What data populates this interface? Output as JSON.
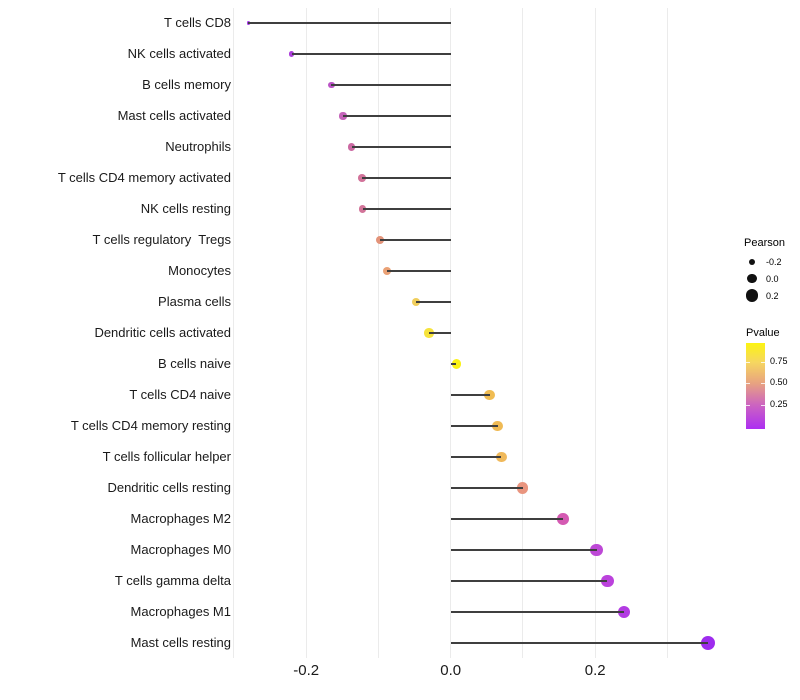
{
  "colors": {
    "background": "#ffffff",
    "gridline": "#ebebeb",
    "segment": "#3f3f3f",
    "axis_text": "#1a1a1a"
  },
  "chart_data": {
    "type": "lollipop",
    "orientation": "horizontal",
    "title": "",
    "xlabel": "",
    "ylabel": "",
    "baseline": 0.0,
    "x_axis": {
      "domain": [
        -0.32,
        0.39
      ],
      "tick_labels": [
        {
          "value": -0.2,
          "label": "-0.2"
        },
        {
          "value": 0.0,
          "label": "0.0"
        },
        {
          "value": 0.2,
          "label": "0.2"
        }
      ],
      "gridlines": [
        -0.3,
        -0.2,
        -0.1,
        0.0,
        0.1,
        0.2,
        0.3
      ]
    },
    "items": [
      {
        "label": "T cells CD8",
        "pearson": -0.28,
        "dot_color": "#a838ec"
      },
      {
        "label": "NK cells activated",
        "pearson": -0.22,
        "dot_color": "#ac3fda"
      },
      {
        "label": "B cells memory",
        "pearson": -0.165,
        "dot_color": "#bb54c6"
      },
      {
        "label": "Mast cells activated",
        "pearson": -0.149,
        "dot_color": "#c463b9"
      },
      {
        "label": "Neutrophils",
        "pearson": -0.137,
        "dot_color": "#cb69a2"
      },
      {
        "label": "T cells CD4 memory activated",
        "pearson": -0.123,
        "dot_color": "#d2739a"
      },
      {
        "label": "NK cells resting",
        "pearson": -0.122,
        "dot_color": "#d27499"
      },
      {
        "label": "T cells regulatory  Tregs",
        "pearson": -0.098,
        "dot_color": "#e39379"
      },
      {
        "label": "Monocytes",
        "pearson": -0.088,
        "dot_color": "#eaa175"
      },
      {
        "label": "Plasma cells",
        "pearson": -0.048,
        "dot_color": "#f0ce5c"
      },
      {
        "label": "Dendritic cells activated",
        "pearson": -0.03,
        "dot_color": "#f6e33c"
      },
      {
        "label": "B cells naive",
        "pearson": 0.008,
        "dot_color": "#fbf215"
      },
      {
        "label": "T cells CD4 naive",
        "pearson": 0.054,
        "dot_color": "#f0bc52"
      },
      {
        "label": "T cells CD4 memory resting",
        "pearson": 0.065,
        "dot_color": "#efba55"
      },
      {
        "label": "T cells follicular helper",
        "pearson": 0.07,
        "dot_color": "#f0b95b"
      },
      {
        "label": "Dendritic cells resting",
        "pearson": 0.1,
        "dot_color": "#e9957f"
      },
      {
        "label": "Macrophages M2",
        "pearson": 0.155,
        "dot_color": "#d45ab2"
      },
      {
        "label": "Macrophages M0",
        "pearson": 0.202,
        "dot_color": "#bd48d6"
      },
      {
        "label": "T cells gamma delta",
        "pearson": 0.217,
        "dot_color": "#bb42dc"
      },
      {
        "label": "Macrophages M1",
        "pearson": 0.24,
        "dot_color": "#b23be2"
      },
      {
        "label": "Mast cells resting",
        "pearson": 0.356,
        "dot_color": "#9e2cee"
      }
    ],
    "legend_size": {
      "title": "Pearson",
      "entries": [
        {
          "label": "-0.2",
          "value": -0.2
        },
        {
          "label": "0.0",
          "value": 0.0
        },
        {
          "label": "0.2",
          "value": 0.2
        }
      ]
    },
    "legend_color": {
      "title": "Pvalue",
      "tick_labels": [
        {
          "label": "0.75",
          "offset_pct": 22
        },
        {
          "label": "0.50",
          "offset_pct": 46.5
        },
        {
          "label": "0.25",
          "offset_pct": 72
        }
      ],
      "gradient_stops": [
        {
          "pos": 0,
          "color": "#fcf412"
        },
        {
          "pos": 22,
          "color": "#f6d75f"
        },
        {
          "pos": 46.5,
          "color": "#e8a380"
        },
        {
          "pos": 72,
          "color": "#cc64c0"
        },
        {
          "pos": 100,
          "color": "#ad2ff2"
        }
      ]
    }
  }
}
